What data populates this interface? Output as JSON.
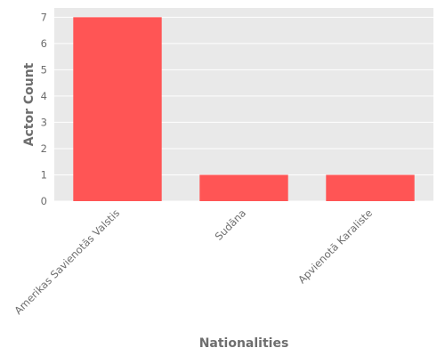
{
  "chart_data": {
    "type": "bar",
    "categories": [
      "Amerikas Savienotās Valstis",
      "Sudāna",
      "Apvienotā Karaliste"
    ],
    "values": [
      7,
      1,
      1
    ],
    "xlabel": "Nationalities",
    "ylabel": "Actor Count",
    "ylim": [
      0,
      7.35
    ],
    "yticks": [
      0,
      1,
      2,
      3,
      4,
      5,
      6,
      7
    ],
    "grid": true,
    "legend": "none",
    "colors": {
      "bar": "#ff5555",
      "plot_background": "#e9e9e9",
      "grid": "#ffffff",
      "text": "#6e6e6e"
    }
  }
}
